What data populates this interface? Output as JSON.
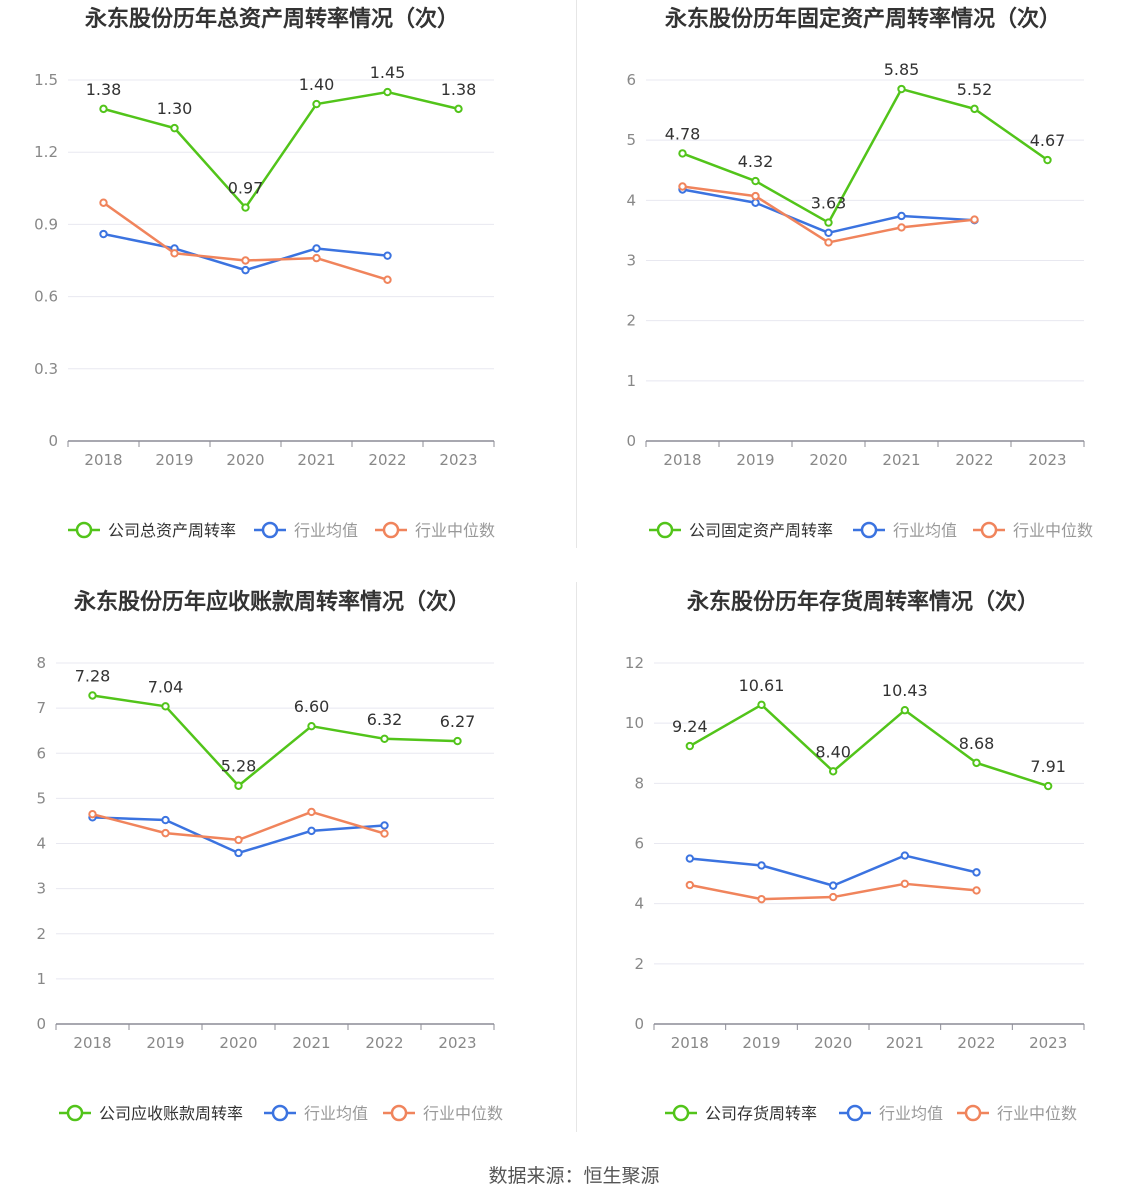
{
  "colors": {
    "company": "#52c41a",
    "avg": "#3b73e0",
    "median": "#f0845c",
    "axis": "#8c8c96",
    "grid": "#e8e8f0",
    "label": "#333333",
    "tick": "#888888",
    "title": "#333333"
  },
  "source_text": "数据来源：恒生聚源",
  "chart_data": [
    {
      "type": "line",
      "title": "永东股份历年总资产周转率情况（次）",
      "categories": [
        "2018",
        "2019",
        "2020",
        "2021",
        "2022",
        "2023"
      ],
      "ylim": [
        0,
        1.5
      ],
      "yticks": [
        0,
        0.3,
        0.6,
        0.9,
        1.2,
        1.5
      ],
      "ytick_labels": [
        "0",
        "0.3",
        "0.6",
        "0.9",
        "1.2",
        "1.5"
      ],
      "series": [
        {
          "name": "公司总资产周转率",
          "role": "company",
          "values": [
            1.38,
            1.3,
            0.97,
            1.4,
            1.45,
            1.38
          ],
          "labels": [
            "1.38",
            "1.30",
            "0.97",
            "1.40",
            "1.45",
            "1.38"
          ]
        },
        {
          "name": "行业均值",
          "role": "avg",
          "values": [
            0.86,
            0.8,
            0.71,
            0.8,
            0.77,
            null
          ]
        },
        {
          "name": "行业中位数",
          "role": "median",
          "values": [
            0.99,
            0.78,
            0.75,
            0.76,
            0.67,
            null
          ]
        }
      ]
    },
    {
      "type": "line",
      "title": "永东股份历年固定资产周转率情况（次）",
      "categories": [
        "2018",
        "2019",
        "2020",
        "2021",
        "2022",
        "2023"
      ],
      "ylim": [
        0,
        6
      ],
      "yticks": [
        0,
        1,
        2,
        3,
        4,
        5,
        6
      ],
      "ytick_labels": [
        "0",
        "1",
        "2",
        "3",
        "4",
        "5",
        "6"
      ],
      "series": [
        {
          "name": "公司固定资产周转率",
          "role": "company",
          "values": [
            4.78,
            4.32,
            3.63,
            5.85,
            5.52,
            4.67
          ],
          "labels": [
            "4.78",
            "4.32",
            "3.63",
            "5.85",
            "5.52",
            "4.67"
          ]
        },
        {
          "name": "行业均值",
          "role": "avg",
          "values": [
            4.18,
            3.96,
            3.46,
            3.74,
            3.67,
            null
          ]
        },
        {
          "name": "行业中位数",
          "role": "median",
          "values": [
            4.23,
            4.07,
            3.3,
            3.55,
            3.68,
            null
          ]
        }
      ]
    },
    {
      "type": "line",
      "title": "永东股份历年应收账款周转率情况（次）",
      "categories": [
        "2018",
        "2019",
        "2020",
        "2021",
        "2022",
        "2023"
      ],
      "ylim": [
        0,
        8
      ],
      "yticks": [
        0,
        1,
        2,
        3,
        4,
        5,
        6,
        7,
        8
      ],
      "ytick_labels": [
        "0",
        "1",
        "2",
        "3",
        "4",
        "5",
        "6",
        "7",
        "8"
      ],
      "series": [
        {
          "name": "公司应收账款周转率",
          "role": "company",
          "values": [
            7.28,
            7.04,
            5.28,
            6.6,
            6.32,
            6.27
          ],
          "labels": [
            "7.28",
            "7.04",
            "5.28",
            "6.60",
            "6.32",
            "6.27"
          ]
        },
        {
          "name": "行业均值",
          "role": "avg",
          "values": [
            4.58,
            4.52,
            3.79,
            4.28,
            4.4,
            null
          ]
        },
        {
          "name": "行业中位数",
          "role": "median",
          "values": [
            4.65,
            4.23,
            4.08,
            4.7,
            4.22,
            null
          ]
        }
      ]
    },
    {
      "type": "line",
      "title": "永东股份历年存货周转率情况（次）",
      "categories": [
        "2018",
        "2019",
        "2020",
        "2021",
        "2022",
        "2023"
      ],
      "ylim": [
        0,
        12
      ],
      "yticks": [
        0,
        2,
        4,
        6,
        8,
        10,
        12
      ],
      "ytick_labels": [
        "0",
        "2",
        "4",
        "6",
        "8",
        "10",
        "12"
      ],
      "series": [
        {
          "name": "公司存货周转率",
          "role": "company",
          "values": [
            9.24,
            10.61,
            8.4,
            10.43,
            8.68,
            7.91
          ],
          "labels": [
            "9.24",
            "10.61",
            "8.40",
            "10.43",
            "8.68",
            "7.91"
          ]
        },
        {
          "name": "行业均值",
          "role": "avg",
          "values": [
            5.5,
            5.27,
            4.6,
            5.6,
            5.04,
            null
          ]
        },
        {
          "name": "行业中位数",
          "role": "median",
          "values": [
            4.62,
            4.15,
            4.22,
            4.66,
            4.44,
            null
          ]
        }
      ]
    }
  ]
}
